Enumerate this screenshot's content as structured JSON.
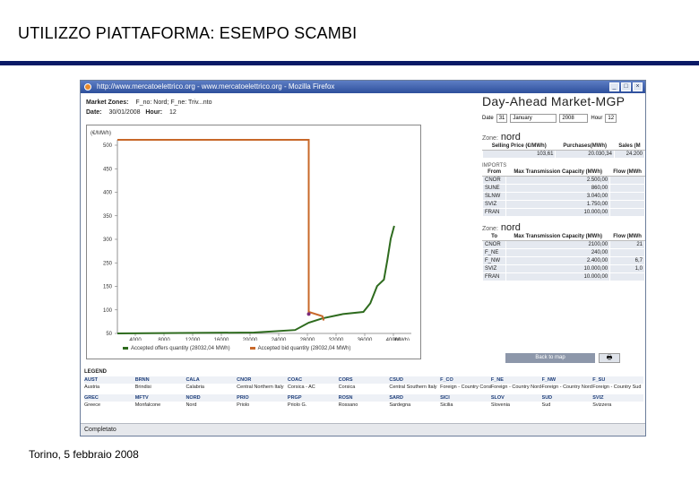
{
  "slide": {
    "title": "UTILIZZO PIATTAFORMA: ESEMPO SCAMBI",
    "footer": "Torino, 5 febbraio 2008"
  },
  "window": {
    "title": "http://www.mercatoelettrico.org - www.mercatoelettrico.org - Mozilla Firefox",
    "buttons": [
      "_",
      "□",
      "×"
    ],
    "status": "Completato"
  },
  "meta": {
    "market_zones_label": "Market Zones:",
    "market_zones_value": "F_no: Nord; F_ne: Triv...nto",
    "date_label": "Date:",
    "date_value": "30/01/2008",
    "hour_label": "Hour:",
    "hour_value": "12"
  },
  "chart_data": {
    "type": "line",
    "ylabel": "(€/MWh)",
    "xlabel": "(MWh)",
    "ylim": [
      50,
      500
    ],
    "xlim": [
      0,
      40000
    ],
    "yticks": [
      "500",
      "450",
      "400",
      "350",
      "300",
      "250",
      "150",
      "100",
      "50"
    ],
    "xticks": [
      "4000",
      "8000",
      "12000",
      "16000",
      "20000",
      "24000",
      "28000",
      "32000",
      "36000",
      "40000"
    ],
    "series": [
      {
        "name": "Accepted offers quantity (28032,04 MWh)",
        "color": "#2e6b1e",
        "points": [
          [
            0,
            50
          ],
          [
            20000,
            52
          ],
          [
            26000,
            58
          ],
          [
            28000,
            75
          ],
          [
            30000,
            85
          ],
          [
            33000,
            95
          ],
          [
            36000,
            100
          ],
          [
            37000,
            120
          ],
          [
            38000,
            160
          ],
          [
            39000,
            175
          ],
          [
            39500,
            220
          ],
          [
            40000,
            270
          ],
          [
            40500,
            300
          ]
        ]
      },
      {
        "name": "Accepted bid quantity (28032,04 MWh)",
        "color": "#c8682a",
        "points": [
          [
            0,
            500
          ],
          [
            28000,
            500
          ],
          [
            28000,
            100
          ],
          [
            30000,
            90
          ],
          [
            30200,
            80
          ]
        ]
      }
    ]
  },
  "market": {
    "title": "Day-Ahead Market-MGP",
    "controls": {
      "date_label": "Date",
      "day": "31",
      "month": "January",
      "year": "2008",
      "hour_label": "Hour",
      "hour": "12"
    },
    "zone_label": "Zone:",
    "zone_name": "nord",
    "price_table": {
      "headers": [
        "Selling Price (€/MWh)",
        "Purchases(MWh)",
        "Sales (M"
      ],
      "row": [
        "103,61",
        "20.030,34",
        "24.200"
      ]
    },
    "imports_label": "IMPORTS",
    "imports_table": {
      "headers": [
        "From",
        "Max Transmission Capacity (MWh)",
        "Flow (MWh"
      ],
      "rows": [
        [
          "CNOR",
          "2.500,00",
          ""
        ],
        [
          "SUNE",
          "860,00",
          ""
        ],
        [
          "SLNW",
          "3.040,00",
          ""
        ],
        [
          "SVIZ",
          "1.750,00",
          ""
        ],
        [
          "FRAN",
          "10.000,00",
          ""
        ]
      ]
    },
    "exports_zone_label": "Zone:",
    "exports_zone_name": "nord",
    "exports_table": {
      "headers": [
        "To",
        "Max Transmission Capacity (MWh)",
        "Flow (MWh"
      ],
      "rows": [
        [
          "CNOR",
          "2100,00",
          "21"
        ],
        [
          "F_NE",
          "240,00",
          ""
        ],
        [
          "F_NW",
          "2.400,00",
          "6,7"
        ],
        [
          "SVIZ",
          "10.000,00",
          "1,0"
        ],
        [
          "FRAN",
          "10.000,00",
          ""
        ]
      ]
    },
    "back_button": "Back to map",
    "print_button": "🖶"
  },
  "legend": {
    "title": "LEGEND",
    "row1_codes": [
      "AUST",
      "BRNN",
      "CALA",
      "CNOR",
      "COAC",
      "CORS",
      "CSUD",
      "F_CO",
      "F_NE",
      "F_NW",
      "F_SU"
    ],
    "row1_names": [
      "Austria",
      "Brindisi",
      "Calabria",
      "Central Northern Italy",
      "Corsica - AC",
      "Corsica",
      "Central Southern Italy",
      "Foreign - Country Corsica",
      "Foreign - Country Nord-Est",
      "Foreign - Country Nord-Ovest",
      "Foreign - Country Sud"
    ],
    "row2_codes": [
      "GREC",
      "MFTV",
      "NORD",
      "PRIO",
      "PRGP",
      "ROSN",
      "SARD",
      "SICI",
      "SLOV",
      "SUD",
      "SVIZ"
    ],
    "row2_names": [
      "Greece",
      "Monfalcone",
      "Nord",
      "Priolo",
      "Priolo G.",
      "Rossano",
      "Sardegna",
      "Sicilia",
      "Slovenia",
      "Sud",
      "Svizzera"
    ]
  }
}
